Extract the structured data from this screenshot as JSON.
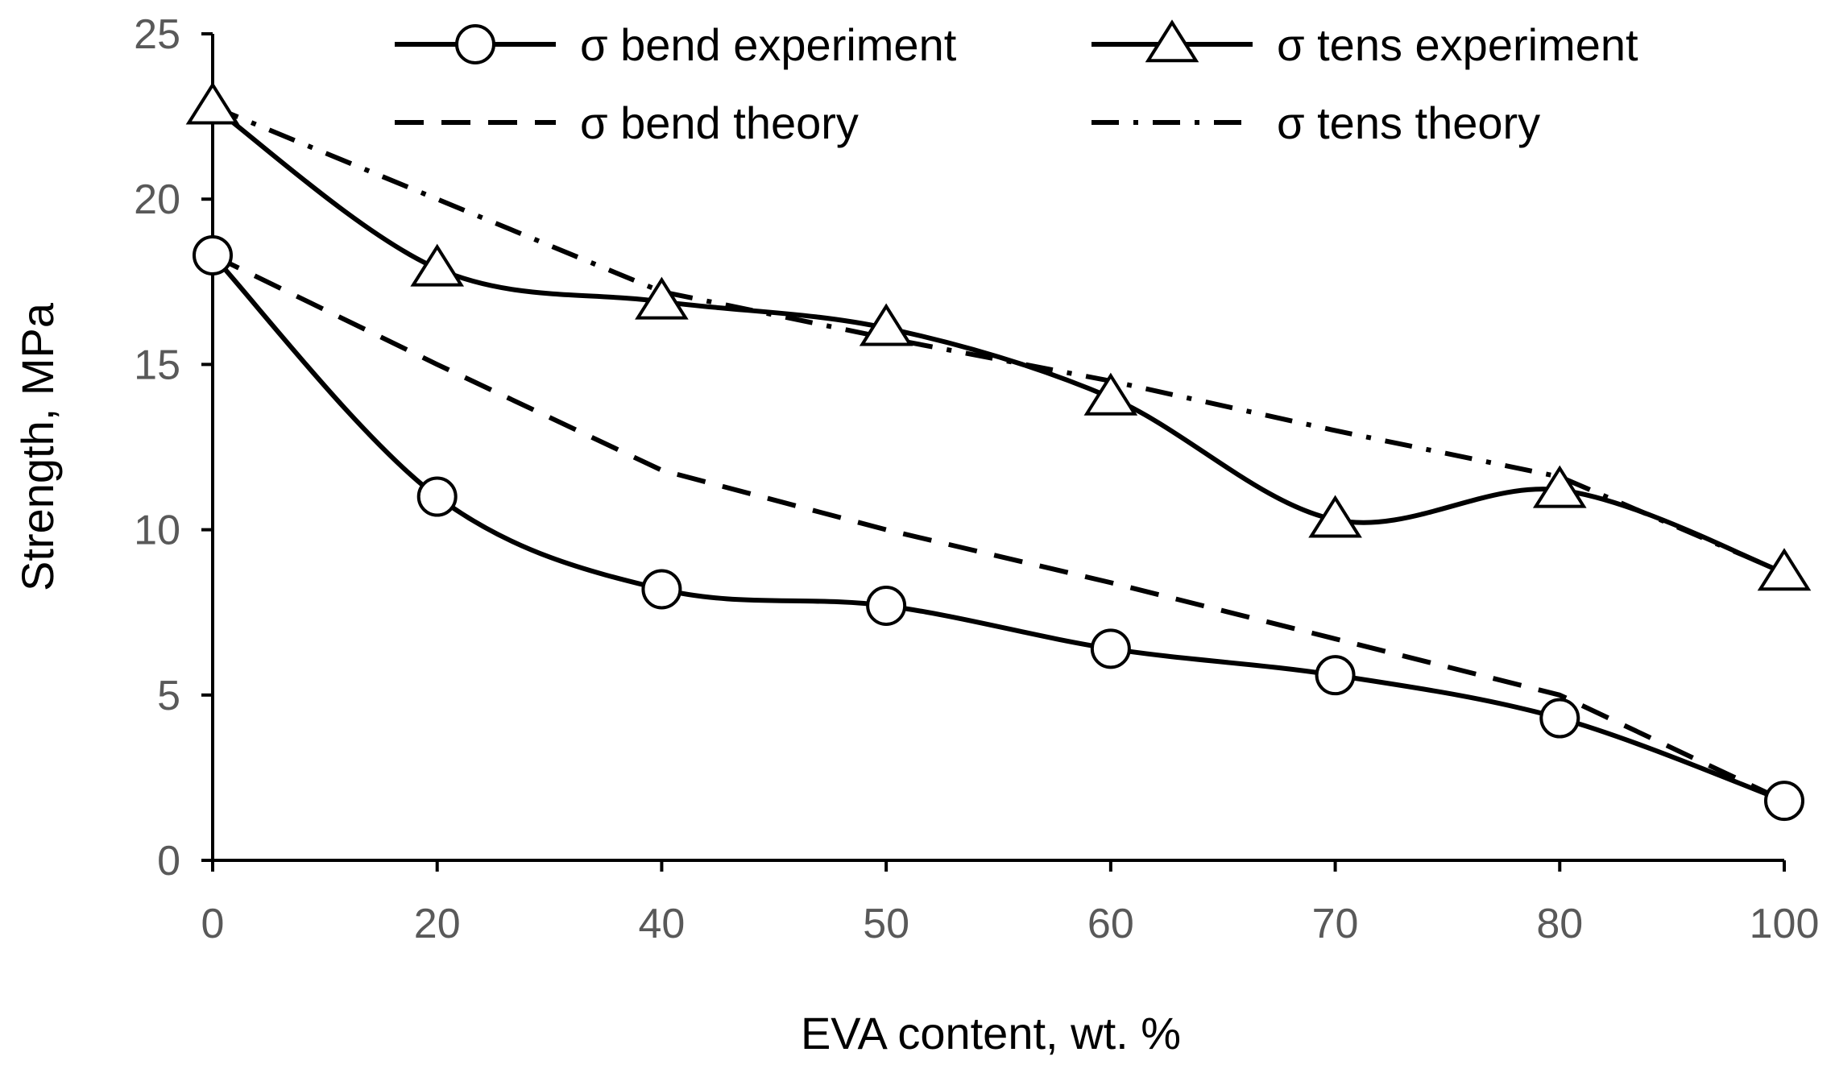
{
  "chart_data": {
    "type": "line",
    "title": "",
    "xlabel": "EVA content, wt. %",
    "ylabel": "Strength, MPa",
    "categories": [
      "0",
      "20",
      "40",
      "50",
      "60",
      "70",
      "80",
      "100"
    ],
    "ylim": [
      0,
      25
    ],
    "yticks": [
      "0",
      "5",
      "10",
      "15",
      "20",
      "25"
    ],
    "grid": false,
    "legend_position": "top",
    "series": [
      {
        "name": "σ bend experiment",
        "style": "solid-smooth",
        "marker": "circle",
        "values": [
          18.3,
          11.0,
          8.2,
          7.7,
          6.4,
          5.6,
          4.3,
          1.8
        ]
      },
      {
        "name": "σ tens experiment",
        "style": "solid-smooth",
        "marker": "triangle",
        "values": [
          22.8,
          17.9,
          16.9,
          16.1,
          14.0,
          10.3,
          11.2,
          8.7
        ]
      },
      {
        "name": "σ bend theory",
        "style": "dashed",
        "marker": "none",
        "values": [
          18.3,
          15.0,
          11.8,
          10.0,
          8.4,
          6.7,
          5.0,
          1.8
        ]
      },
      {
        "name": "σ tens theory",
        "style": "dash-dot",
        "marker": "none",
        "values": [
          22.8,
          20.0,
          17.2,
          15.8,
          14.5,
          13.0,
          11.6,
          8.7
        ]
      }
    ],
    "colors": {
      "line": "#000000",
      "marker_fill": "#ffffff",
      "axis": "#000000",
      "tick_text": "#595959"
    }
  }
}
